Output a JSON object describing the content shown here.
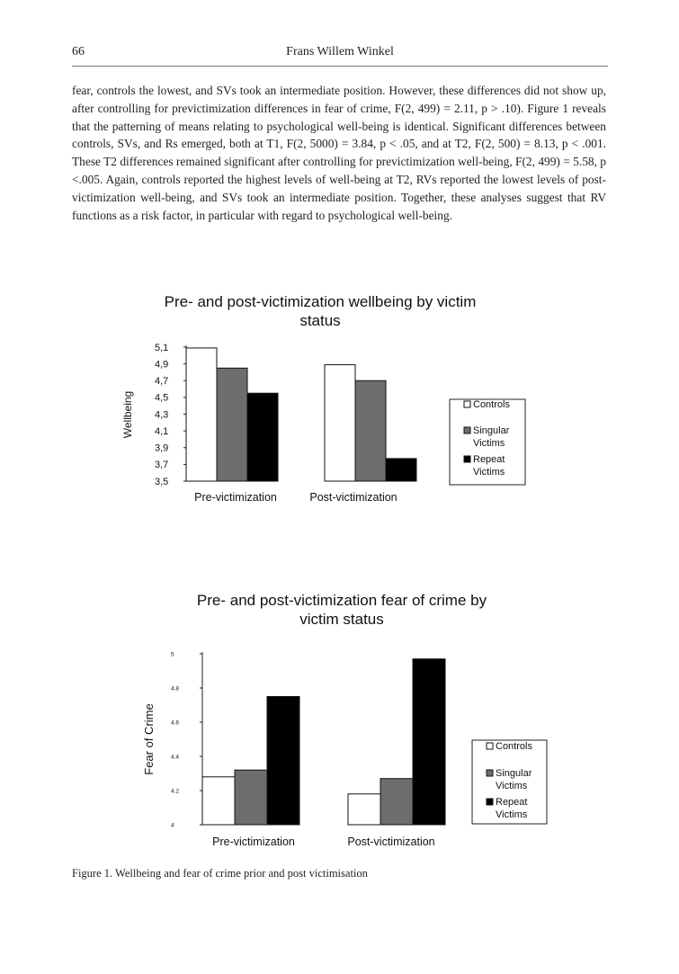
{
  "header": {
    "page_number": "66",
    "author": "Frans Willem Winkel"
  },
  "body": {
    "paragraph": "fear, controls the lowest, and SVs took an intermediate position. However, these differences did not show up, after controlling for previctimization differences in fear of crime, F(2, 499) = 2.11, p > .10). Figure 1 reveals that the patterning of means relating to psychological well-being is identical. Significant differences between controls, SVs, and Rs emerged, both at T1, F(2, 5000) = 3.84, p < .05, and at T2, F(2, 500) = 8.13, p < .001. These T2 differences remained significant after controlling for previctimization well-being, F(2, 499) = 5.58, p <.005. Again, controls reported the highest levels of well-being at T2, RVs reported the lowest levels of post-victimization well-being, and SVs took an intermediate position. Together, these analyses suggest that RV functions as a risk factor, in particular with regard to psychological well-being."
  },
  "colors": {
    "controls": "#ffffff",
    "singular": "#6d6d6d",
    "repeat": "#000000"
  },
  "chart_data": [
    {
      "type": "bar",
      "title_line1": "Pre- and post-victimization wellbeing by victim",
      "title_line2": "status",
      "ylabel": "Wellbeing",
      "xlabel": "",
      "ylim": [
        3.5,
        5.1
      ],
      "yticks": [
        "5,1",
        "4,9",
        "4,7",
        "4,5",
        "4,3",
        "4,1",
        "3,9",
        "3,7",
        "3,5"
      ],
      "categories": [
        "Pre-victimization",
        "Post-victimization"
      ],
      "series": [
        {
          "name": "Controls",
          "values": [
            5.09,
            4.89
          ]
        },
        {
          "name": "Singular Victims",
          "values": [
            4.85,
            4.7
          ]
        },
        {
          "name": "Repeat Victims",
          "values": [
            4.55,
            3.77
          ]
        }
      ],
      "legend": [
        "Controls",
        "Singular Victims",
        "Repeat Victims"
      ],
      "legend_placement": "right",
      "grid": false
    },
    {
      "type": "bar",
      "title_line1": "Pre- and post-victimization fear of crime by",
      "title_line2": "victim status",
      "ylabel": "Fear of Crime",
      "xlabel": "",
      "ylim": [
        4,
        5
      ],
      "yticks": [
        "5",
        "4.8",
        "4.6",
        "4.4",
        "4.2",
        "4"
      ],
      "categories": [
        "Pre-victimization",
        "Post-victimization"
      ],
      "series": [
        {
          "name": "Controls",
          "values": [
            4.28,
            4.18
          ]
        },
        {
          "name": "Singular Victims",
          "values": [
            4.32,
            4.27
          ]
        },
        {
          "name": "Repeat Victims",
          "values": [
            4.75,
            4.97
          ]
        }
      ],
      "legend": [
        "Controls",
        "Singular Victims",
        "Repeat Victims"
      ],
      "legend_placement": "right",
      "grid": false
    }
  ],
  "caption": "Figure 1. Wellbeing and fear of crime prior and post victimisation"
}
